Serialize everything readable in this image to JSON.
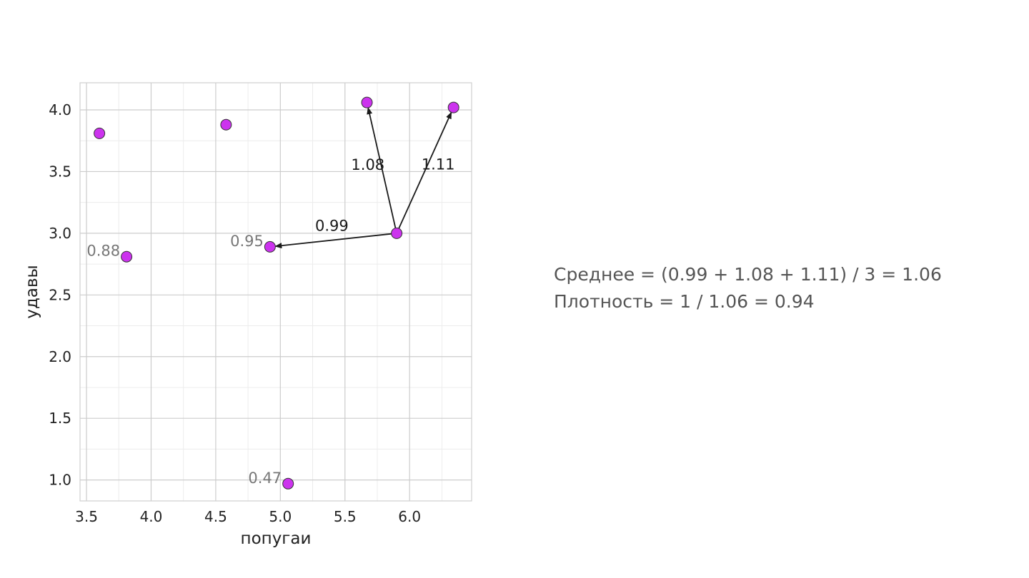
{
  "chart_data": {
    "type": "scatter",
    "xlabel": "попугаи",
    "ylabel": "удавы",
    "xlim": [
      3.45,
      6.48
    ],
    "ylim": [
      0.83,
      4.22
    ],
    "x_ticks": [
      "3.5",
      "4.0",
      "4.5",
      "5.0",
      "5.5",
      "6.0"
    ],
    "y_ticks": [
      "1.0",
      "1.5",
      "2.0",
      "2.5",
      "3.0",
      "3.5",
      "4.0"
    ],
    "grid": true,
    "points": [
      {
        "x": 3.6,
        "y": 3.81
      },
      {
        "x": 4.58,
        "y": 3.88
      },
      {
        "x": 5.67,
        "y": 4.06
      },
      {
        "x": 6.34,
        "y": 4.02
      },
      {
        "x": 5.9,
        "y": 3.0
      },
      {
        "x": 4.92,
        "y": 2.89
      },
      {
        "x": 3.81,
        "y": 2.81
      },
      {
        "x": 5.06,
        "y": 0.97
      }
    ],
    "arrows": [
      {
        "from": [
          5.9,
          3.0
        ],
        "to": [
          4.92,
          2.89
        ],
        "label": "0.99"
      },
      {
        "from": [
          5.9,
          3.0
        ],
        "to": [
          5.67,
          4.06
        ],
        "label": "1.08"
      },
      {
        "from": [
          5.9,
          3.0
        ],
        "to": [
          6.34,
          4.02
        ],
        "label": "1.11"
      }
    ],
    "point_annotations": [
      {
        "x": 4.92,
        "y": 2.89,
        "text": "0.95"
      },
      {
        "x": 3.81,
        "y": 2.81,
        "text": "0.88"
      },
      {
        "x": 5.06,
        "y": 0.97,
        "text": "0.47"
      }
    ],
    "colors": {
      "point_fill": "#cc33ee",
      "point_edge": "#333333",
      "arrow": "#1a1a1a",
      "annotation": "#777777",
      "grid_major": "#cccccc",
      "grid_minor": "#ececec"
    }
  },
  "formula": {
    "line1": "Среднее = (0.99 + 1.08 + 1.11) / 3 = 1.06",
    "line2": "Плотность = 1 / 1.06 = 0.94"
  }
}
